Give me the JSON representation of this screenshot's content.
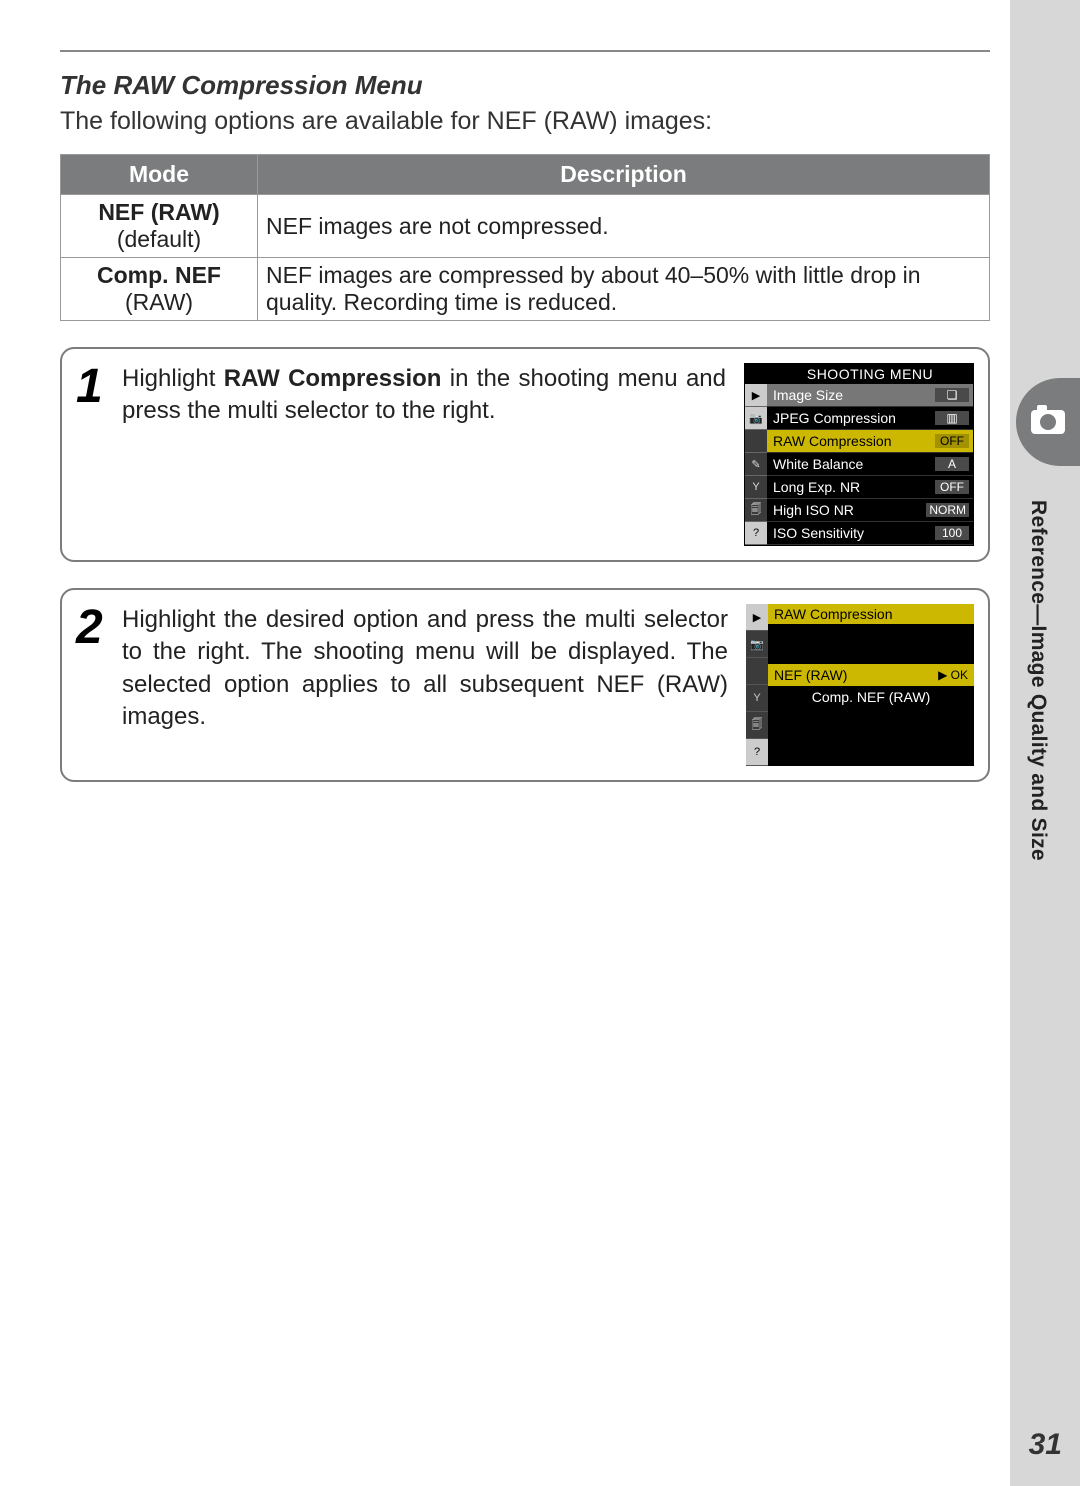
{
  "colors": {
    "header_bg": "#7a7c7d",
    "header_text": "#ffffff",
    "border": "#999999",
    "highlight": "#ccb800",
    "lcd_bg": "#000000",
    "lcd_text": "#ffffff",
    "sidebar_bg": "#d7d7d7"
  },
  "section_title": "The RAW Compression Menu",
  "intro": "The following options are available for NEF (RAW) images:",
  "table": {
    "columns": [
      "Mode",
      "Description"
    ],
    "rows": [
      {
        "mode_strong": "NEF (RAW)",
        "mode_sub": "(default)",
        "desc": "NEF images are not compressed."
      },
      {
        "mode_strong": "Comp. NEF",
        "mode_sub": "(RAW)",
        "desc": "NEF images are compressed by about 40–50% with little drop in quality.  Recording time is reduced."
      }
    ]
  },
  "steps": [
    {
      "num": "1",
      "text_pre": "Highlight ",
      "text_bold": "RAW Compression",
      "text_post": " in the shooting menu and press the multi selector to the right."
    },
    {
      "num": "2",
      "text_pre": "Highlight the desired option and press the multi selector to the right.  The shooting menu will be displayed.  The selected option applies to all subsequent NEF (RAW) images.",
      "text_bold": "",
      "text_post": ""
    }
  ],
  "lcd1": {
    "title": "SHOOTING MENU",
    "icons": [
      "▶",
      "📷",
      " ",
      "✎",
      "Y",
      "🗐",
      "?"
    ],
    "items": [
      {
        "label": "Image Size",
        "val": "❏",
        "sel": true
      },
      {
        "label": "JPEG Compression",
        "val": "▥",
        "sel": false
      },
      {
        "label": "RAW Compression",
        "val": "OFF",
        "sel": true
      },
      {
        "label": "White Balance",
        "val": "A",
        "sel": false
      },
      {
        "label": "Long Exp. NR",
        "val": "OFF",
        "sel": false
      },
      {
        "label": "High ISO NR",
        "val": "NORM",
        "sel": false
      },
      {
        "label": "ISO Sensitivity",
        "val": "100",
        "sel": false
      }
    ]
  },
  "lcd2": {
    "title": "RAW Compression",
    "icons": [
      "▶",
      "📷",
      " ",
      "Y",
      "🗐",
      "?"
    ],
    "options": [
      {
        "label": "NEF (RAW)",
        "ok": "▶ OK",
        "sel": true
      },
      {
        "label": "Comp. NEF (RAW)",
        "ok": "",
        "sel": false
      }
    ]
  },
  "sidebar_label": "Reference—Image Quality and Size",
  "page_number": "31"
}
